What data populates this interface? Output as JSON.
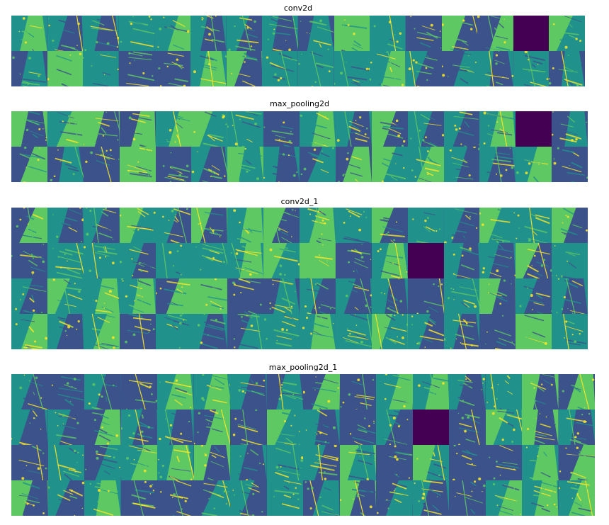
{
  "panels": [
    {
      "id": "conv2d",
      "title": "conv2d",
      "rows": 2,
      "cols": 16,
      "dead_cells": [
        14
      ]
    },
    {
      "id": "max_pooling2d",
      "title": "max_pooling2d",
      "rows": 2,
      "cols": 16,
      "dead_cells": [
        14
      ]
    },
    {
      "id": "conv2d_1",
      "title": "conv2d_1",
      "rows": 4,
      "cols": 16,
      "dead_cells": [
        27
      ]
    },
    {
      "id": "max_pooling2d_1",
      "title": "max_pooling2d_1",
      "rows": 4,
      "cols": 16,
      "dead_cells": [
        27
      ]
    }
  ],
  "colormap": {
    "name": "viridis",
    "dead": "#440154",
    "dark": "#3b528b",
    "mid": "#21918c",
    "light": "#5ec962",
    "bright": "#fde725"
  }
}
